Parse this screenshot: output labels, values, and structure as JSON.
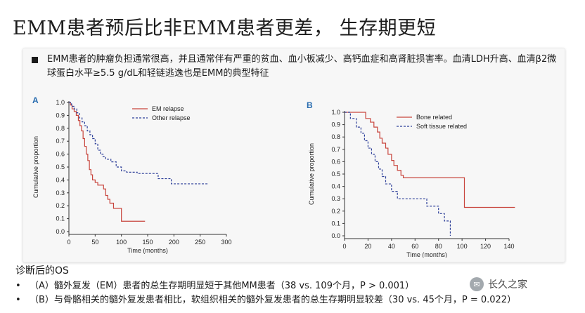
{
  "title": "EMM患者预后比非EMM患者更差， 生存期更短",
  "bullet": "EMM患者的肿瘤负担通常很高，并且通常伴有严重的贫血、血小板减少、高钙血症和高肾脏损害率。血清LDH升高、血清β2微球蛋白水平≥5.5 g/dL和轻链逃逸也是EMM的典型特征",
  "footer": {
    "heading": "诊断后的OS",
    "bullet_symbol": "•",
    "items": [
      "（A）髓外复发（EM）患者的总生存期明显短于其他MM患者（38 vs. 109个月，P > 0.001）",
      "（B）与骨骼相关的髓外复发患者相比，软组织相关的髓外复发患者的总生存期明显较差（30 vs. 45个月，P = 0.022）"
    ]
  },
  "watermark": {
    "icon": "wechat-icon",
    "text": "长久之家"
  },
  "colors": {
    "solid": "#c8453d",
    "dashed": "#2d3f99",
    "axis": "#333333"
  },
  "chart_data": [
    {
      "type": "line",
      "panel_label": "A",
      "xlabel": "Time (months)",
      "ylabel": "Cumulative proportion",
      "xlim": [
        0,
        300
      ],
      "ylim": [
        0,
        1.0
      ],
      "xticks": [
        "0",
        "50",
        "100",
        "150",
        "200",
        "250",
        "300"
      ],
      "yticks": [
        "0.0",
        "0.1",
        "0.2",
        "0.3",
        "0.4",
        "0.5",
        "0.6",
        "0.7",
        "0.8",
        "0.9",
        "1.0"
      ],
      "legend_position": "top-right",
      "series": [
        {
          "name": "EM relapse",
          "style": "solid",
          "points": [
            [
              0,
              1.0
            ],
            [
              3,
              0.98
            ],
            [
              6,
              0.95
            ],
            [
              10,
              0.93
            ],
            [
              14,
              0.9
            ],
            [
              18,
              0.86
            ],
            [
              21,
              0.82
            ],
            [
              24,
              0.78
            ],
            [
              27,
              0.72
            ],
            [
              30,
              0.66
            ],
            [
              33,
              0.6
            ],
            [
              36,
              0.55
            ],
            [
              39,
              0.48
            ],
            [
              42,
              0.44
            ],
            [
              45,
              0.4
            ],
            [
              50,
              0.38
            ],
            [
              55,
              0.36
            ],
            [
              62,
              0.36
            ],
            [
              66,
              0.33
            ],
            [
              70,
              0.28
            ],
            [
              74,
              0.25
            ],
            [
              78,
              0.22
            ],
            [
              85,
              0.18
            ],
            [
              92,
              0.18
            ],
            [
              100,
              0.08
            ],
            [
              145,
              0.08
            ]
          ]
        },
        {
          "name": "Other relapse",
          "style": "dashed",
          "points": [
            [
              0,
              1.0
            ],
            [
              5,
              0.97
            ],
            [
              10,
              0.95
            ],
            [
              15,
              0.92
            ],
            [
              20,
              0.88
            ],
            [
              25,
              0.85
            ],
            [
              30,
              0.82
            ],
            [
              35,
              0.78
            ],
            [
              40,
              0.75
            ],
            [
              45,
              0.72
            ],
            [
              50,
              0.68
            ],
            [
              55,
              0.63
            ],
            [
              60,
              0.6
            ],
            [
              65,
              0.58
            ],
            [
              70,
              0.56
            ],
            [
              80,
              0.54
            ],
            [
              90,
              0.5
            ],
            [
              100,
              0.47
            ],
            [
              110,
              0.46
            ],
            [
              130,
              0.45
            ],
            [
              150,
              0.45
            ],
            [
              170,
              0.41
            ],
            [
              195,
              0.37
            ],
            [
              265,
              0.37
            ]
          ]
        }
      ]
    },
    {
      "type": "line",
      "panel_label": "B",
      "xlabel": "Time (months)",
      "ylabel": "Cumulative proportion",
      "xlim": [
        0,
        140
      ],
      "ylim": [
        0,
        1.0
      ],
      "xticks": [
        "0",
        "20",
        "40",
        "60",
        "80",
        "100",
        "120",
        "140"
      ],
      "yticks": [
        "0.0",
        "0.1",
        "0.2",
        "0.3",
        "0.4",
        "0.5",
        "0.6",
        "0.7",
        "0.8",
        "0.9",
        "1.0"
      ],
      "legend_position": "top-right",
      "series": [
        {
          "name": "Bone related",
          "style": "solid",
          "points": [
            [
              0,
              1.0
            ],
            [
              18,
              1.0
            ],
            [
              18,
              0.95
            ],
            [
              22,
              0.92
            ],
            [
              25,
              0.88
            ],
            [
              28,
              0.84
            ],
            [
              30,
              0.79
            ],
            [
              32,
              0.75
            ],
            [
              35,
              0.71
            ],
            [
              37,
              0.66
            ],
            [
              40,
              0.61
            ],
            [
              42,
              0.57
            ],
            [
              45,
              0.53
            ],
            [
              48,
              0.49
            ],
            [
              50,
              0.47
            ],
            [
              100,
              0.47
            ],
            [
              102,
              0.23
            ],
            [
              145,
              0.23
            ]
          ]
        },
        {
          "name": "Soft tissue related",
          "style": "dashed",
          "points": [
            [
              0,
              1.0
            ],
            [
              5,
              0.95
            ],
            [
              10,
              0.88
            ],
            [
              14,
              0.83
            ],
            [
              17,
              0.77
            ],
            [
              20,
              0.71
            ],
            [
              23,
              0.66
            ],
            [
              26,
              0.6
            ],
            [
              29,
              0.54
            ],
            [
              32,
              0.48
            ],
            [
              35,
              0.42
            ],
            [
              40,
              0.36
            ],
            [
              45,
              0.3
            ],
            [
              60,
              0.3
            ],
            [
              70,
              0.24
            ],
            [
              80,
              0.18
            ],
            [
              85,
              0.12
            ],
            [
              90,
              0.06
            ],
            [
              90,
              0.0
            ]
          ]
        }
      ]
    }
  ]
}
